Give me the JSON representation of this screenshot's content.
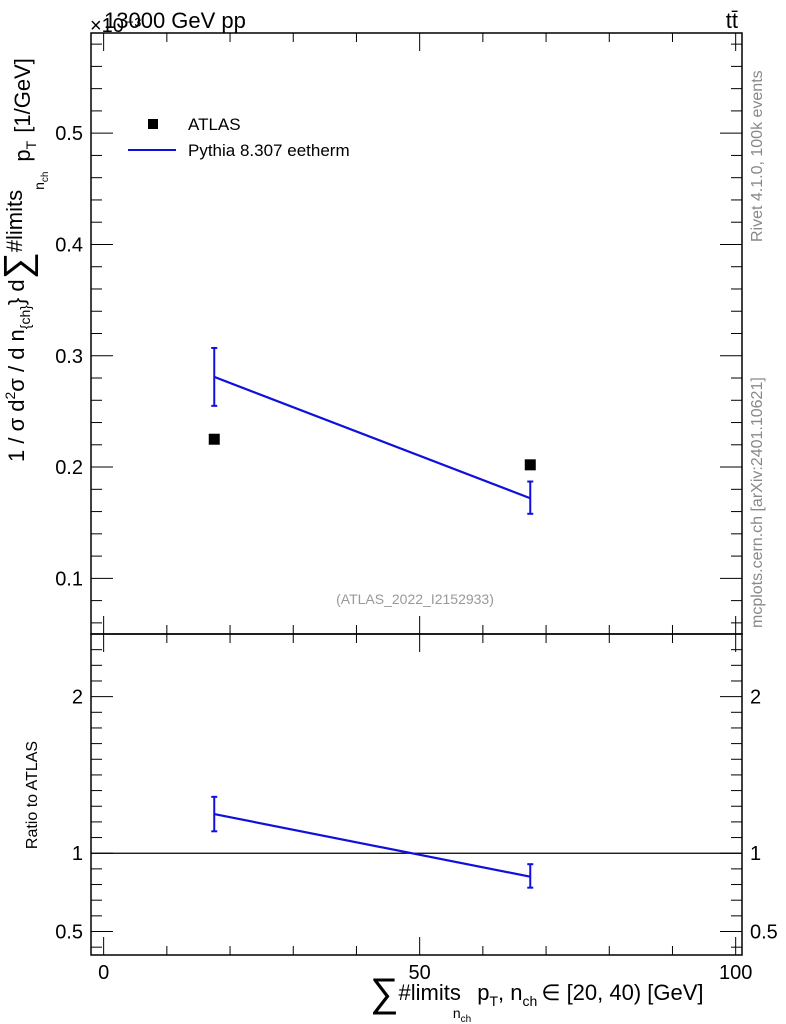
{
  "header": {
    "energy_label": "13000 GeV pp",
    "process_label": "tt̄",
    "exponent_label": "×10⁻³"
  },
  "side_labels": {
    "rivet": "Rivet 4.1.0,  100k events",
    "mcplots": "mcplots.cern.ch [arXiv:2401.10621]"
  },
  "analysis_label": "(ATLAS_2022_I2152933)",
  "legend": {
    "data_label": "ATLAS",
    "mc_label": "Pythia 8.307 eetherm"
  },
  "colors": {
    "mc": "#1010dd",
    "data": "#000000",
    "label_gray": "#888888"
  },
  "chart_data": [
    {
      "type": "scatter",
      "panel": "main",
      "ylabel_parts": {
        "a": "1 / σ d",
        "b": "2",
        "c": "σ / d n",
        "d": "{ch}",
        "e": "} d",
        "f": "∑",
        "g": "#limits",
        "h": "n",
        "i": "ch",
        "j": "p",
        "k": "T",
        "l": "[1/GeV]"
      },
      "xlim": [
        -2,
        101
      ],
      "ylim": [
        0.05,
        0.59
      ],
      "y_scale_note": "×10⁻³",
      "yticks": [
        0.1,
        0.2,
        0.3,
        0.4,
        0.5
      ],
      "ytick_labels": [
        "0.1",
        "0.2",
        "0.3",
        "0.4",
        "0.5"
      ],
      "series": [
        {
          "name": "ATLAS",
          "marker": "square",
          "points": [
            {
              "x": 17.5,
              "y": 0.225
            },
            {
              "x": 67.5,
              "y": 0.202
            }
          ]
        },
        {
          "name": "Pythia 8.307 eetherm",
          "marker": "line",
          "points": [
            {
              "x": 17.5,
              "y": 0.281,
              "ylo": 0.255,
              "yhi": 0.307
            },
            {
              "x": 67.5,
              "y": 0.172,
              "ylo": 0.158,
              "yhi": 0.187
            }
          ]
        }
      ]
    },
    {
      "type": "line",
      "panel": "ratio",
      "ylabel": "Ratio to ATLAS",
      "xlabel_parts": {
        "sum": "∑",
        "limits": "#limits",
        "n": "n",
        "ch": "ch",
        "p": "p",
        "T": "T",
        "comma": ", n",
        "ch2": "ch",
        "rest": "∈ [20, 40) [GeV]"
      },
      "xlim": [
        -2,
        101
      ],
      "ylim": [
        0.35,
        2.4
      ],
      "xticks": [
        0,
        50,
        100
      ],
      "xtick_labels": [
        "0",
        "50",
        "100"
      ],
      "yticks": [
        0.5,
        1,
        2
      ],
      "ytick_labels": [
        "0.5",
        "1",
        "2"
      ],
      "reference_line": 1,
      "series": [
        {
          "name": "Pythia 8.307 eetherm",
          "points": [
            {
              "x": 17.5,
              "y": 1.25,
              "ylo": 1.14,
              "yhi": 1.36
            },
            {
              "x": 67.5,
              "y": 0.85,
              "ylo": 0.78,
              "yhi": 0.93
            }
          ]
        }
      ]
    }
  ]
}
